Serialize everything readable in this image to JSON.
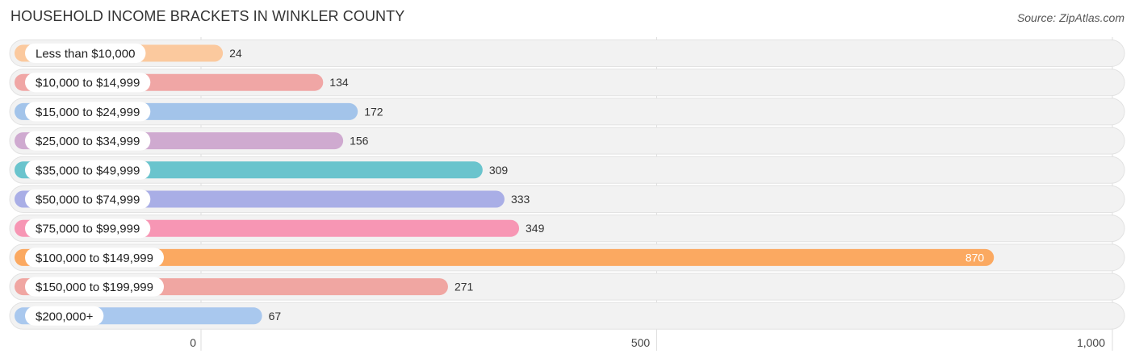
{
  "title": "HOUSEHOLD INCOME BRACKETS IN WINKLER COUNTY",
  "source": "Source: ZipAtlas.com",
  "chart_data": {
    "type": "bar",
    "orientation": "horizontal",
    "title": "HOUSEHOLD INCOME BRACKETS IN WINKLER COUNTY",
    "categories": [
      "Less than $10,000",
      "$10,000 to $14,999",
      "$15,000 to $24,999",
      "$25,000 to $34,999",
      "$35,000 to $49,999",
      "$50,000 to $74,999",
      "$75,000 to $99,999",
      "$100,000 to $149,999",
      "$150,000 to $199,999",
      "$200,000+"
    ],
    "values": [
      24,
      134,
      172,
      156,
      309,
      333,
      349,
      870,
      271,
      67
    ],
    "value_labels": [
      "24",
      "134",
      "172",
      "156",
      "309",
      "333",
      "349",
      "870",
      "271",
      "67"
    ],
    "colors": [
      "#fbc99e",
      "#f0a6a5",
      "#a3c4ea",
      "#cfaad0",
      "#6ac4cd",
      "#a9aee6",
      "#f796b4",
      "#fba961",
      "#f0a6a2",
      "#a9c8ee"
    ],
    "xlim": [
      0,
      1000
    ],
    "xticks": [
      0,
      500,
      1000
    ],
    "xtick_labels": [
      "0",
      "500",
      "1,000"
    ],
    "grid": true
  }
}
